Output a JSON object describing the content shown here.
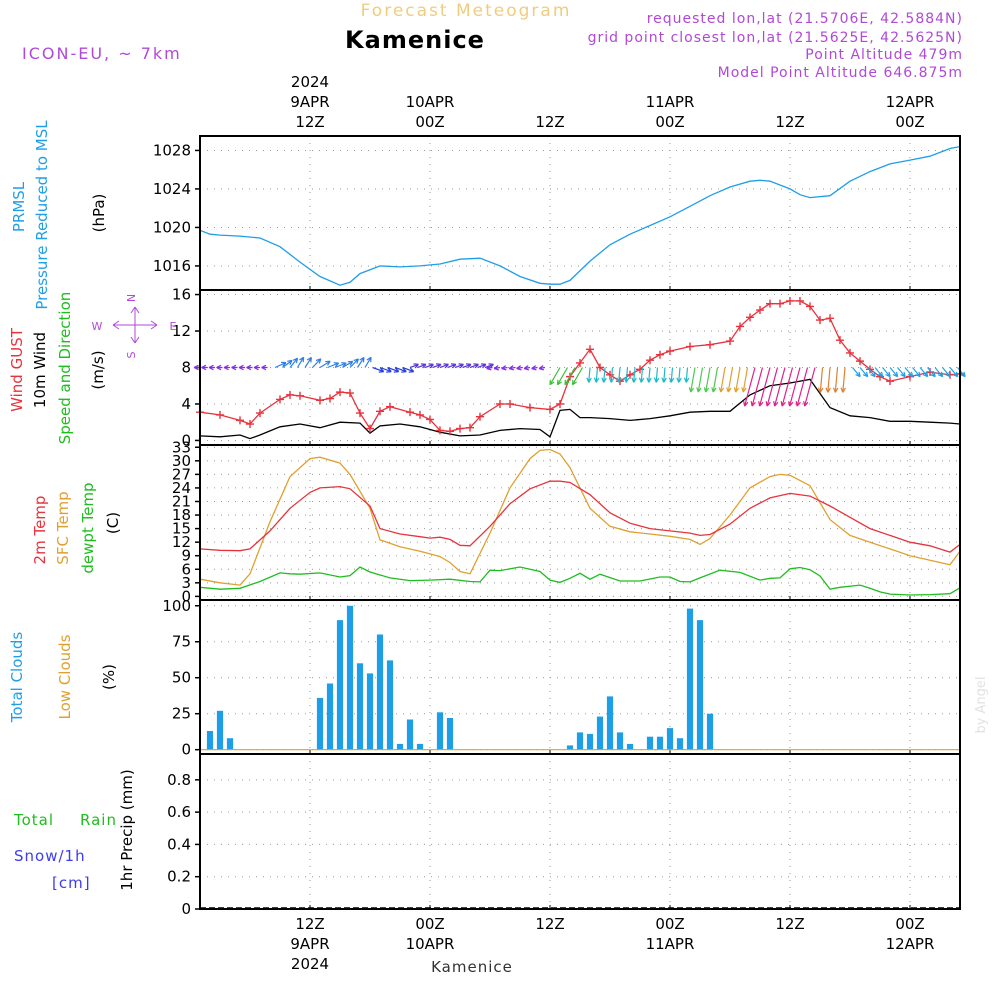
{
  "header": {
    "title_small": "Forecast Meteogram",
    "title": "Kamenice",
    "model": "ICON-EU, ~ 7km",
    "requested": "requested lon,lat (21.5706E, 42.5884N)",
    "grid_point": "grid point closest lon,lat (21.5625E, 42.5625N)",
    "point_altitude": "Point Altitude 479m",
    "model_altitude": "Model Point Altitude 646.875m",
    "footer_location": "Kamenice",
    "watermark": "by Angel"
  },
  "time_axis": {
    "top_labels": [
      {
        "lines": [
          "2024",
          "9APR",
          "12Z"
        ],
        "hour": 12
      },
      {
        "lines": [
          "10APR",
          "00Z"
        ],
        "hour": 24
      },
      {
        "lines": [
          "12Z"
        ],
        "hour": 36
      },
      {
        "lines": [
          "11APR",
          "00Z"
        ],
        "hour": 48
      },
      {
        "lines": [
          "12Z"
        ],
        "hour": 60
      },
      {
        "lines": [
          "12APR",
          "00Z"
        ],
        "hour": 72
      }
    ],
    "bottom_labels": [
      {
        "lines": [
          "12Z",
          "9APR",
          "2024"
        ],
        "hour": 12
      },
      {
        "lines": [
          "00Z",
          "10APR"
        ],
        "hour": 24
      },
      {
        "lines": [
          "12Z"
        ],
        "hour": 36
      },
      {
        "lines": [
          "00Z",
          "11APR"
        ],
        "hour": 48
      },
      {
        "lines": [
          "12Z"
        ],
        "hour": 60
      },
      {
        "lines": [
          "00Z",
          "12APR"
        ],
        "hour": 72
      }
    ],
    "range_hours": [
      1,
      77
    ]
  },
  "panels": {
    "pressure": {
      "labels": [
        {
          "text": "PRMSL",
          "color": "#1f9ee8"
        },
        {
          "text": "Pressure Reduced to MSL",
          "color": "#1f9ee8"
        }
      ],
      "unit": "(hPa)",
      "yticks": [
        1016,
        1020,
        1024,
        1028
      ]
    },
    "wind": {
      "labels": [
        {
          "text": "Wind GUST",
          "color": "#e8323c"
        },
        {
          "text": "10m Wind",
          "color": "#000000"
        },
        {
          "text": "Speed and Direction",
          "color": "#1fbd1f"
        }
      ],
      "unit": "(m/s)",
      "compass": {
        "n": "N",
        "s": "S",
        "e": "E",
        "w": "W"
      },
      "yticks": [
        0,
        4,
        8,
        12,
        16
      ]
    },
    "temperature": {
      "labels": [
        {
          "text": "2m Temp",
          "color": "#e8323c"
        },
        {
          "text": "SFC Temp",
          "color": "#e0a030"
        },
        {
          "text": "dewpt Temp",
          "color": "#1fbd1f"
        }
      ],
      "unit": "(C)",
      "yticks": [
        0,
        3,
        6,
        9,
        12,
        15,
        18,
        21,
        24,
        27,
        30,
        33
      ]
    },
    "clouds": {
      "labels": [
        {
          "text": "Total Clouds",
          "color": "#1f9ee8"
        },
        {
          "text": "Low Clouds",
          "color": "#e0a030"
        }
      ],
      "unit": "(%)",
      "yticks": [
        0,
        25,
        50,
        75,
        100
      ]
    },
    "precip": {
      "labels": [
        {
          "text": "Total",
          "color": "#1fbd1f"
        },
        {
          "text": "Rain",
          "color": "#1fbd1f"
        },
        {
          "text": "Snow/1h",
          "color": "#3c3cf0"
        },
        {
          "text": "[cm]",
          "color": "#3c3cf0"
        }
      ],
      "unit": "1hr Precip (mm)",
      "yticks": [
        0,
        0.2,
        0.4,
        0.6,
        0.8
      ]
    }
  },
  "chart_data": [
    {
      "type": "line",
      "name": "pressure",
      "ylim": [
        1013.5,
        1029.5
      ],
      "series": [
        {
          "name": "PRMSL",
          "color": "#1f9ee8",
          "x": [
            1,
            2,
            3,
            5,
            7,
            9,
            11,
            13,
            15,
            16,
            17,
            19,
            21,
            23,
            25,
            27,
            29,
            31,
            33,
            35,
            36,
            37,
            38,
            40,
            42,
            44,
            46,
            48,
            50,
            52,
            54,
            56,
            57,
            58,
            60,
            61,
            62,
            64,
            66,
            68,
            70,
            72,
            74,
            76,
            77
          ],
          "y": [
            1019.7,
            1019.3,
            1019.2,
            1019.1,
            1018.9,
            1018.0,
            1016.4,
            1014.9,
            1014.0,
            1014.3,
            1015.2,
            1016.0,
            1015.9,
            1016.0,
            1016.2,
            1016.7,
            1016.8,
            1016.0,
            1014.9,
            1014.2,
            1014.1,
            1014.1,
            1014.5,
            1016.5,
            1018.2,
            1019.3,
            1020.2,
            1021.1,
            1022.2,
            1023.3,
            1024.2,
            1024.8,
            1024.9,
            1024.8,
            1024.0,
            1023.4,
            1023.1,
            1023.3,
            1024.8,
            1025.8,
            1026.6,
            1027.0,
            1027.4,
            1028.2,
            1028.4
          ]
        }
      ]
    },
    {
      "type": "line",
      "name": "wind",
      "ylim": [
        -0.5,
        16.5
      ],
      "series": [
        {
          "name": "Wind GUST",
          "color": "#e8323c",
          "marker": "plus",
          "x": [
            1,
            3,
            5,
            6,
            7,
            9,
            10,
            11,
            13,
            14,
            15,
            16,
            17,
            18,
            19,
            20,
            22,
            23,
            24,
            25,
            26,
            27,
            28,
            29,
            31,
            32,
            34,
            36,
            37,
            38,
            39,
            40,
            41,
            42,
            43,
            44,
            45,
            46,
            47,
            48,
            50,
            52,
            54,
            55,
            56,
            57,
            58,
            59,
            60,
            61,
            62,
            63,
            64,
            65,
            66,
            67,
            68,
            69,
            70,
            72,
            74,
            76,
            77
          ],
          "y": [
            3.1,
            2.8,
            2.2,
            1.8,
            3.0,
            4.5,
            5.0,
            4.9,
            4.4,
            4.6,
            5.3,
            5.2,
            3.0,
            1.3,
            3.2,
            3.7,
            3.1,
            2.8,
            2.3,
            1.1,
            1.0,
            1.3,
            1.4,
            2.6,
            4.0,
            4.0,
            3.6,
            3.4,
            4.0,
            7.0,
            8.5,
            10.0,
            8.0,
            7.2,
            6.5,
            7.2,
            7.8,
            8.8,
            9.4,
            9.8,
            10.3,
            10.5,
            10.9,
            12.5,
            13.5,
            14.3,
            15.0,
            15.0,
            15.3,
            15.3,
            14.7,
            13.2,
            13.4,
            11.0,
            9.6,
            8.7,
            7.8,
            7.0,
            6.5,
            7.0,
            7.5,
            7.2,
            7.3
          ]
        },
        {
          "name": "10m Wind",
          "color": "#000000",
          "x": [
            1,
            3,
            5,
            6,
            7,
            9,
            11,
            13,
            15,
            17,
            18,
            19,
            21,
            23,
            25,
            27,
            29,
            31,
            33,
            35,
            36,
            37,
            38,
            39,
            40,
            42,
            44,
            46,
            48,
            50,
            52,
            54,
            56,
            58,
            60,
            62,
            64,
            66,
            68,
            70,
            72,
            74,
            76,
            77
          ],
          "y": [
            0.5,
            0.4,
            0.6,
            0.2,
            0.6,
            1.5,
            1.8,
            1.4,
            2.0,
            1.9,
            0.8,
            1.6,
            1.8,
            1.5,
            0.9,
            0.5,
            0.6,
            1.1,
            1.3,
            1.2,
            0.4,
            3.3,
            3.4,
            2.5,
            2.5,
            2.4,
            2.2,
            2.4,
            2.7,
            3.1,
            3.2,
            3.2,
            5.0,
            6.0,
            6.3,
            6.7,
            3.6,
            2.7,
            2.5,
            2.1,
            2.1,
            2.0,
            1.9,
            1.8
          ]
        }
      ]
    },
    {
      "type": "line",
      "name": "temperature",
      "ylim": [
        -0.8,
        33.5
      ],
      "series": [
        {
          "name": "2m Temp",
          "color": "#e8323c",
          "x": [
            1,
            3,
            5,
            6,
            8,
            10,
            12,
            13,
            15,
            16,
            18,
            19,
            21,
            23,
            24,
            25,
            26,
            27,
            28,
            30,
            32,
            34,
            36,
            37,
            38,
            40,
            42,
            44,
            46,
            48,
            50,
            51,
            52,
            54,
            56,
            58,
            60,
            62,
            64,
            66,
            68,
            70,
            72,
            74,
            76,
            77
          ],
          "y": [
            10.5,
            10.2,
            10.1,
            10.5,
            14.5,
            19.5,
            23.0,
            24.0,
            24.3,
            23.8,
            20.0,
            15.0,
            13.8,
            13.2,
            12.9,
            13.1,
            12.6,
            11.3,
            11.2,
            15.5,
            20.5,
            23.8,
            25.5,
            25.5,
            25.2,
            22.5,
            18.5,
            16.2,
            15.0,
            14.5,
            14.0,
            13.5,
            13.7,
            16.0,
            19.5,
            21.8,
            22.8,
            22.2,
            20.0,
            17.5,
            15.0,
            13.5,
            12.0,
            11.2,
            9.8,
            11.5
          ]
        },
        {
          "name": "SFC Temp",
          "color": "#e0a030",
          "x": [
            1,
            3,
            5,
            6,
            8,
            10,
            12,
            13,
            15,
            16,
            18,
            19,
            21,
            23,
            24,
            25,
            26,
            27,
            28,
            30,
            32,
            34,
            35,
            36,
            37,
            38,
            40,
            42,
            44,
            46,
            48,
            50,
            51,
            52,
            54,
            56,
            58,
            59,
            60,
            62,
            64,
            66,
            68,
            70,
            72,
            74,
            76,
            77
          ],
          "y": [
            3.8,
            3.0,
            2.5,
            5.0,
            16.5,
            26.5,
            30.5,
            30.8,
            29.5,
            27.0,
            19.5,
            12.5,
            11.0,
            10.0,
            9.4,
            8.8,
            7.5,
            5.5,
            5.0,
            14.0,
            24.0,
            30.5,
            32.3,
            32.5,
            31.5,
            28.5,
            19.5,
            15.5,
            14.3,
            13.8,
            13.3,
            12.6,
            11.5,
            12.8,
            18.0,
            24.0,
            26.5,
            27.0,
            26.8,
            24.5,
            17.0,
            13.5,
            12.0,
            10.5,
            9.0,
            8.0,
            7.0,
            10.0
          ]
        },
        {
          "name": "dewpt Temp",
          "color": "#1fbd1f",
          "x": [
            1,
            3,
            5,
            7,
            9,
            10,
            11,
            13,
            15,
            16,
            17,
            18,
            20,
            22,
            24,
            26,
            28,
            29,
            30,
            31,
            33,
            35,
            36,
            37,
            38,
            39,
            40,
            41,
            43,
            45,
            47,
            48,
            49,
            50,
            51,
            53,
            55,
            57,
            58,
            59,
            60,
            61,
            62,
            63,
            64,
            65,
            67,
            68,
            69,
            70,
            72,
            74,
            76,
            77
          ],
          "y": [
            2.0,
            1.6,
            1.8,
            3.3,
            5.2,
            5.0,
            4.9,
            5.2,
            4.3,
            4.6,
            6.5,
            5.4,
            4.1,
            3.5,
            3.6,
            3.8,
            3.3,
            3.2,
            5.8,
            5.7,
            6.5,
            5.5,
            3.6,
            3.1,
            4.0,
            5.1,
            3.8,
            4.9,
            3.4,
            3.4,
            4.3,
            4.3,
            3.3,
            3.2,
            4.1,
            5.8,
            5.3,
            3.6,
            4.0,
            4.1,
            6.1,
            6.4,
            5.9,
            4.5,
            1.6,
            2.0,
            2.5,
            1.8,
            1.0,
            0.5,
            0.3,
            0.4,
            0.6,
            1.9
          ]
        }
      ]
    },
    {
      "type": "bar",
      "name": "clouds",
      "ylim": [
        -3,
        104
      ],
      "series": [
        {
          "name": "Total Clouds",
          "color": "#1f9ee8",
          "x": [
            1,
            2,
            3,
            4,
            5,
            6,
            7,
            8,
            9,
            10,
            11,
            12,
            13,
            14,
            15,
            16,
            17,
            18,
            19,
            20,
            21,
            22,
            23,
            24,
            25,
            26,
            27,
            28,
            29,
            30,
            31,
            32,
            33,
            34,
            35,
            36,
            37,
            38,
            39,
            40,
            41,
            42,
            43,
            44,
            45,
            46,
            47,
            48,
            49,
            50,
            51,
            52,
            53,
            54,
            55,
            56,
            57,
            58,
            59,
            60,
            61,
            62,
            63,
            64,
            65,
            66,
            67,
            68,
            69,
            70,
            71,
            72,
            73,
            74,
            75,
            76,
            77
          ],
          "y": [
            0,
            13,
            27,
            8,
            0,
            0,
            0,
            0,
            0,
            0,
            0,
            0,
            36,
            46,
            90,
            100,
            60,
            53,
            80,
            62,
            4,
            21,
            4,
            0,
            26,
            22,
            0,
            0,
            0,
            0,
            0,
            0,
            0,
            0,
            0,
            0,
            0,
            3,
            12,
            11,
            23,
            37,
            12,
            4,
            0,
            9,
            9,
            15,
            8,
            98,
            90,
            25,
            0,
            0,
            0,
            0,
            0,
            0,
            0,
            0,
            0,
            0,
            0,
            0,
            0,
            0,
            0,
            0,
            0,
            0,
            0,
            0,
            0,
            0,
            0,
            0,
            0
          ]
        },
        {
          "name": "Low Clouds",
          "color": "#e0a030",
          "x": [
            1,
            77
          ],
          "y": [
            0,
            0
          ]
        }
      ]
    },
    {
      "type": "line",
      "name": "precip",
      "ylim": [
        0,
        0.96
      ],
      "series": [
        {
          "name": "Total",
          "color": "#1fbd1f",
          "x": [
            1,
            77
          ],
          "y": [
            0,
            0
          ]
        },
        {
          "name": "Snow/1h",
          "color": "#3c3cf0",
          "x": [
            1,
            77
          ],
          "y": [
            0,
            0
          ]
        }
      ]
    }
  ]
}
